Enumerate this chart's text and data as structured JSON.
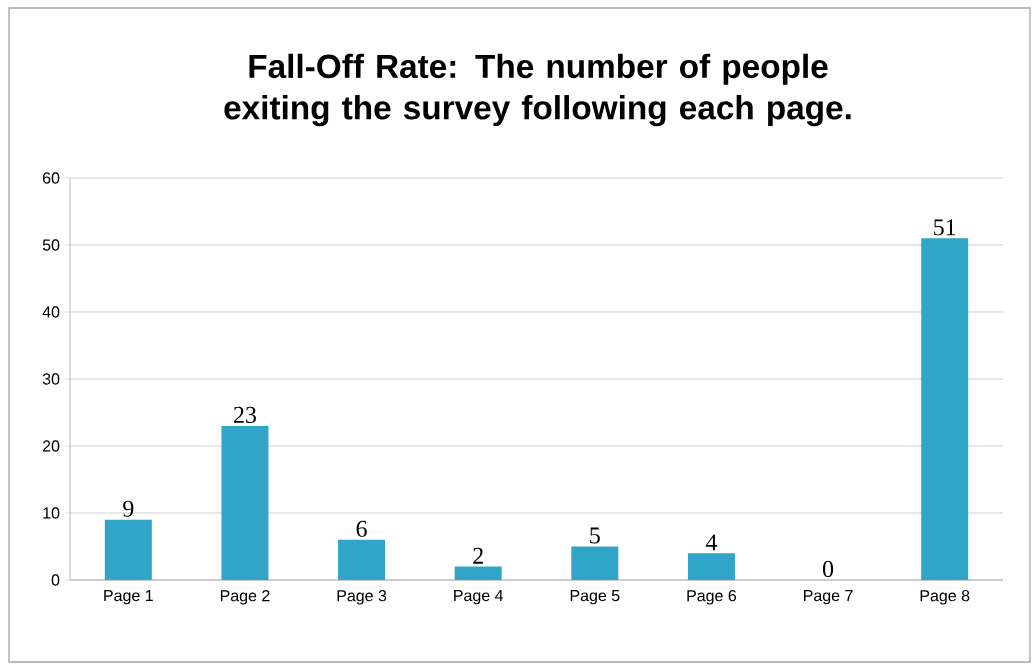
{
  "chart_data": {
    "type": "bar",
    "title": "Fall-Off Rate: The number of people exiting the survey following each page.",
    "categories": [
      "Page 1",
      "Page 2",
      "Page 3",
      "Page 4",
      "Page 5",
      "Page 6",
      "Page 7",
      "Page 8"
    ],
    "values": [
      9,
      23,
      6,
      2,
      5,
      4,
      0,
      51
    ],
    "color": "#31a5c8",
    "ylim": [
      0,
      60
    ],
    "yticks": [
      0,
      10,
      20,
      30,
      40,
      50,
      60
    ],
    "grid": "y",
    "data_labels": true
  }
}
